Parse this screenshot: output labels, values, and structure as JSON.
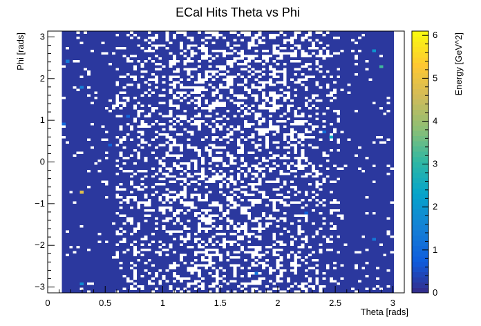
{
  "chart_data": {
    "type": "heatmap",
    "title": "ECal Hits Theta vs Phi",
    "xlabel": "Theta [rads]",
    "ylabel": "Phi [rads]",
    "zlabel": "Energy [GeV^2]",
    "xlim": [
      0,
      3.1
    ],
    "ylim": [
      -3.14,
      3.14
    ],
    "zlim": [
      0,
      6.1
    ],
    "x_ticks": [
      "0",
      "0.5",
      "1",
      "1.5",
      "2",
      "2.5",
      "3"
    ],
    "x_tick_values": [
      0,
      0.5,
      1,
      1.5,
      2,
      2.5,
      3
    ],
    "y_ticks": [
      "-3",
      "-2",
      "-1",
      "0",
      "1",
      "2",
      "3"
    ],
    "y_tick_values": [
      -3,
      -2,
      -1,
      0,
      1,
      2,
      3
    ],
    "z_ticks": [
      "0",
      "1",
      "2",
      "3",
      "4",
      "5",
      "6"
    ],
    "z_tick_values": [
      0,
      1,
      2,
      3,
      4,
      5,
      6
    ],
    "data_theta_range": [
      0.12,
      3.0
    ],
    "background_energy": 0.2,
    "colormap": "parula",
    "grid": false,
    "hotspots": [
      {
        "theta": 0.3,
        "phi": -0.7,
        "energy": 4.8
      },
      {
        "theta": 2.9,
        "phi": 2.3,
        "energy": 3.2
      },
      {
        "theta": 2.45,
        "phi": 0.6,
        "energy": 2.5
      },
      {
        "theta": 2.85,
        "phi": 2.7,
        "energy": 2.0
      },
      {
        "theta": 0.3,
        "phi": -2.95,
        "energy": 1.8
      },
      {
        "theta": 0.3,
        "phi": 1.8,
        "energy": 1.5
      },
      {
        "theta": 0.18,
        "phi": 2.4,
        "energy": 1.4
      },
      {
        "theta": 2.85,
        "phi": -1.85,
        "energy": 1.3
      },
      {
        "theta": 1.8,
        "phi": -2.7,
        "energy": 1.2
      },
      {
        "theta": 2.4,
        "phi": 0.7,
        "energy": 1.1
      },
      {
        "theta": 0.15,
        "phi": 0.9,
        "energy": 1.0
      },
      {
        "theta": 0.7,
        "phi": 1.1,
        "energy": 1.0
      },
      {
        "theta": 2.25,
        "phi": -1.2,
        "energy": 0.9
      },
      {
        "theta": 0.55,
        "phi": 0.4,
        "energy": 0.9
      }
    ]
  }
}
